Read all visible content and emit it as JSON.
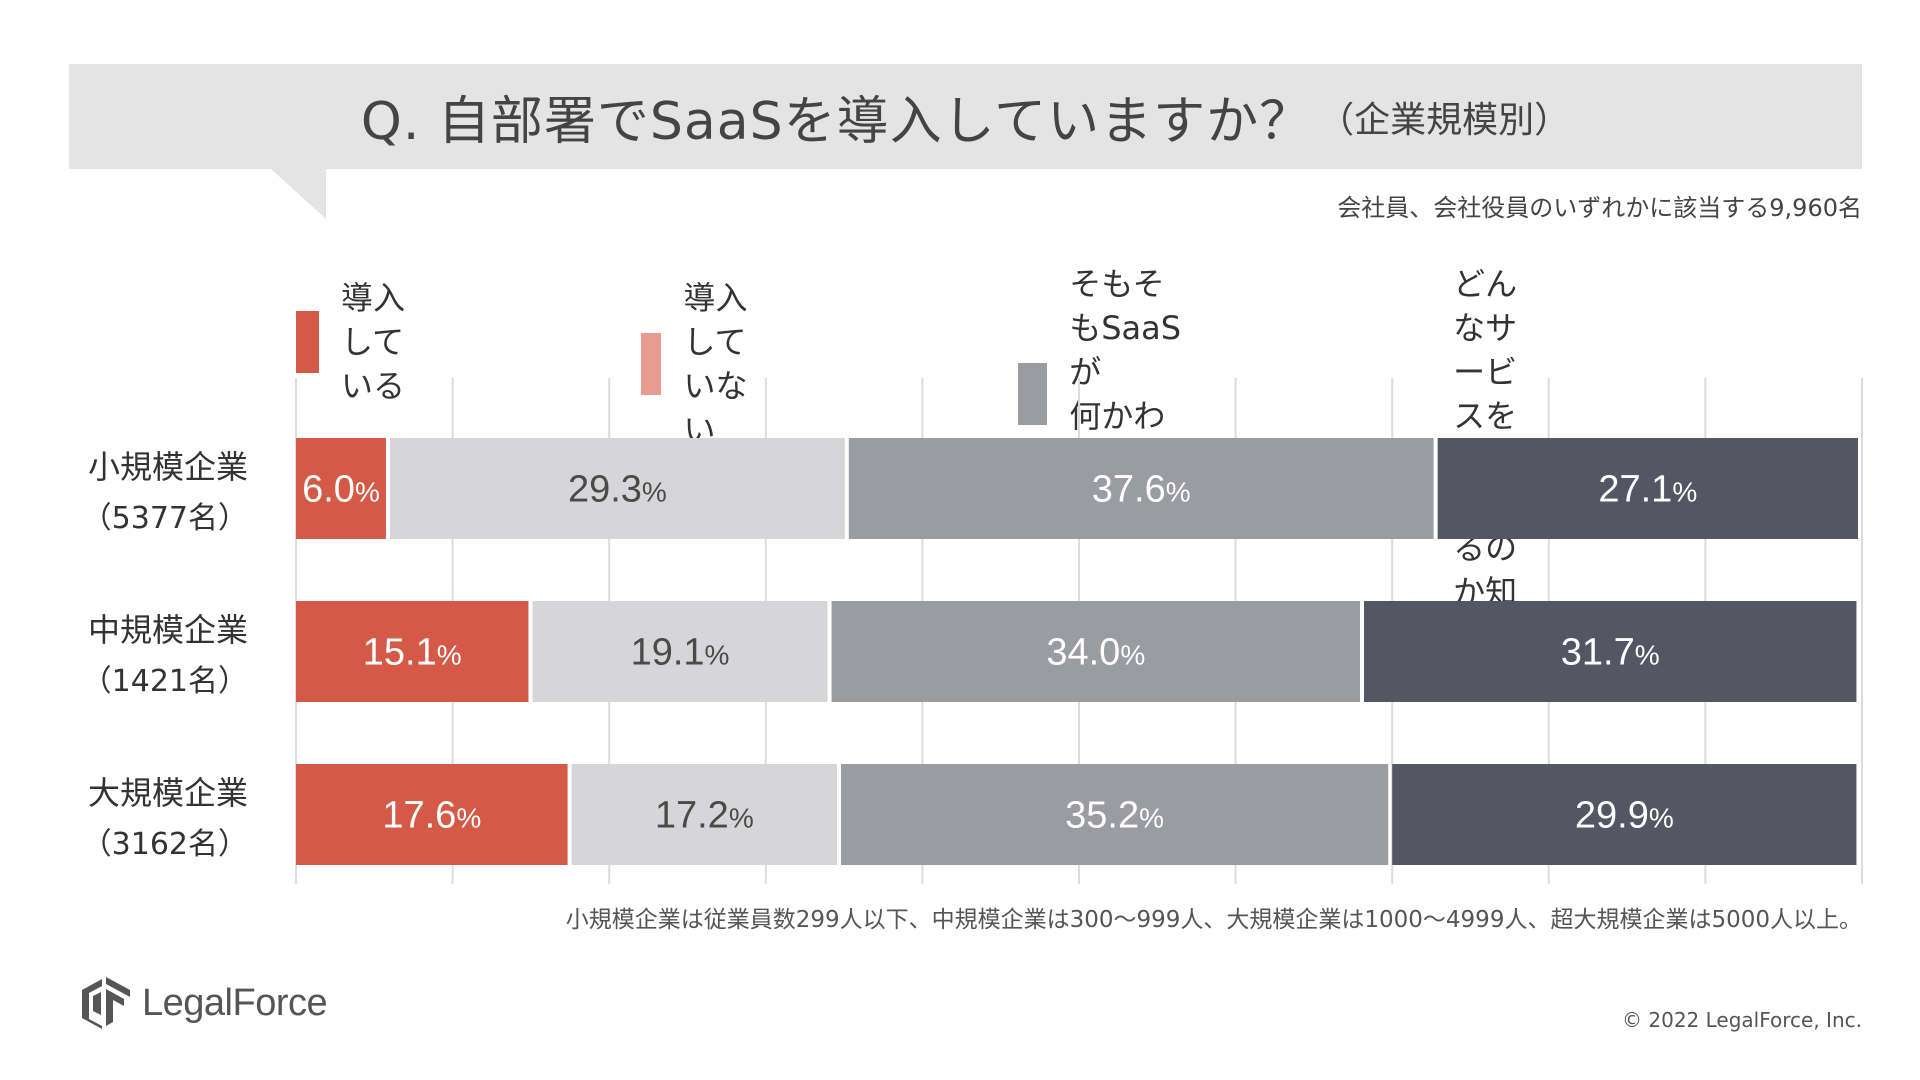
{
  "title": {
    "main": "Q. 自部署でSaaSを導入していますか？",
    "sub": "（企業規模別）"
  },
  "respondents": "会社員、会社役員のいずれかに該当する9,960名",
  "legend": [
    {
      "label": "導入している",
      "color": "#d45a47"
    },
    {
      "label": "導入していない",
      "color": "#e89b91"
    },
    {
      "label": "そもそもSaaSが\n何かわからない",
      "color": "#9a9ca2"
    },
    {
      "label": "どんなサービスを\n使っているのか知らない",
      "color": "#545663"
    }
  ],
  "chart_data": {
    "type": "bar",
    "orientation": "horizontal",
    "stacked": true,
    "categories": [
      {
        "name": "小規模企業",
        "count": "（5377名）"
      },
      {
        "name": "中規模企業",
        "count": "（1421名）"
      },
      {
        "name": "大規模企業",
        "count": "（3162名）"
      }
    ],
    "series": [
      {
        "name": "導入している",
        "color": "#d45a47",
        "values": [
          6.0,
          15.1,
          17.6
        ]
      },
      {
        "name": "導入していない",
        "color": "#d6d6d9",
        "values": [
          29.3,
          19.1,
          17.2
        ]
      },
      {
        "name": "そもそもSaaSが何かわからない",
        "color": "#9a9ca2",
        "values": [
          37.6,
          34.0,
          35.2
        ]
      },
      {
        "name": "どんなサービスを使っているのか知らない",
        "color": "#545663",
        "values": [
          27.1,
          31.7,
          29.9
        ]
      }
    ],
    "label_colors": [
      "#ffffff",
      "#4a4a4a",
      "#ffffff",
      "#ffffff"
    ],
    "unit": "%",
    "xlim": [
      0,
      100
    ],
    "grid": true,
    "legend_position": "top"
  },
  "footnote": "小規模企業は従業員数299人以下、中規模企業は300〜999人、大規模企業は1000〜4999人、超大規模企業は5000人以上。",
  "logo": {
    "text": "LegalForce"
  },
  "copyright": "© 2022 LegalForce, Inc."
}
